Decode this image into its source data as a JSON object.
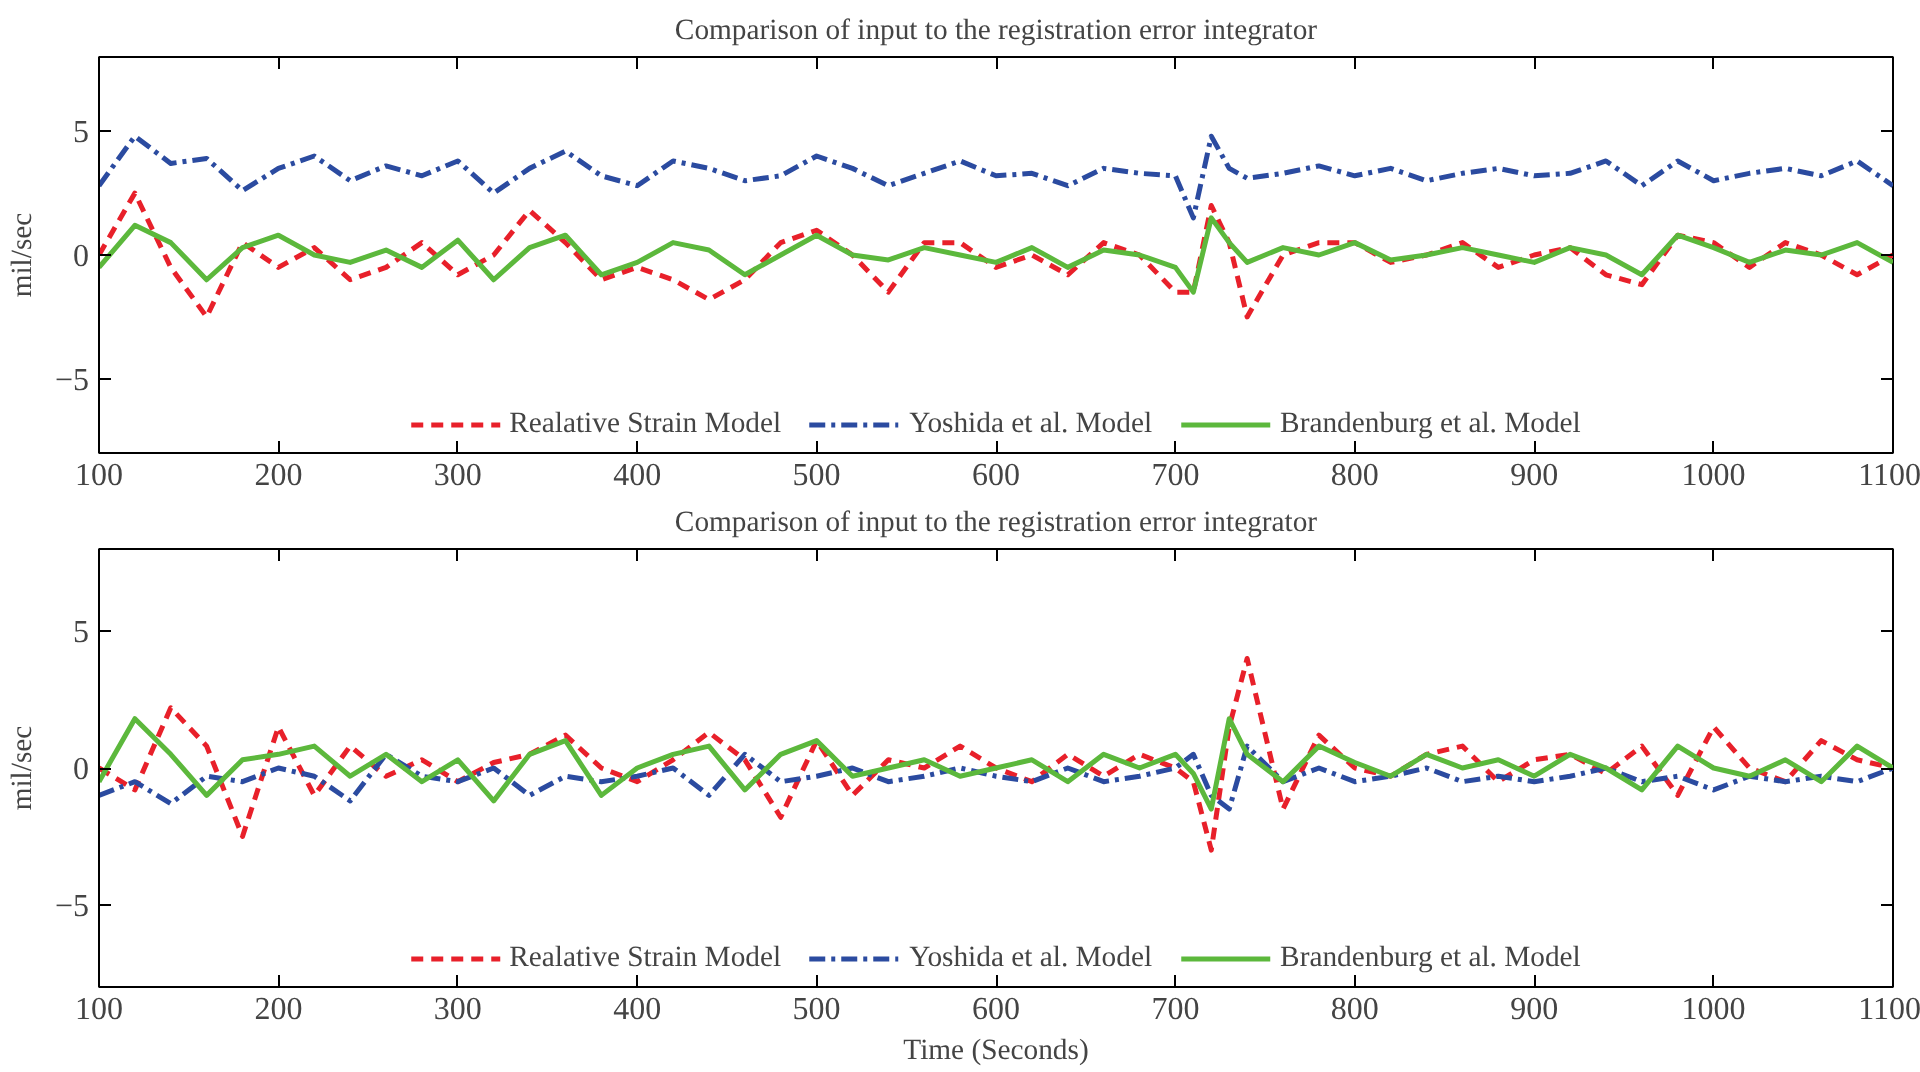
{
  "chart_data": [
    {
      "type": "line",
      "title": "Comparison of input to the registration error integrator",
      "ylabel": "mil/sec",
      "xlim": [
        100,
        1100
      ],
      "ylim": [
        -8,
        8
      ],
      "xticks": [
        100,
        200,
        300,
        400,
        500,
        600,
        700,
        800,
        900,
        1000,
        1100
      ],
      "yticks": [
        -5,
        0,
        5
      ],
      "grid": false,
      "legend": "bottom",
      "marker": "none",
      "x": [
        100,
        120,
        140,
        160,
        180,
        200,
        220,
        240,
        260,
        280,
        300,
        320,
        340,
        360,
        380,
        400,
        420,
        440,
        460,
        480,
        500,
        520,
        540,
        560,
        580,
        600,
        620,
        640,
        660,
        680,
        700,
        710,
        720,
        730,
        740,
        760,
        780,
        800,
        820,
        840,
        860,
        880,
        900,
        920,
        940,
        960,
        980,
        1000,
        1020,
        1040,
        1060,
        1080,
        1100
      ],
      "series": [
        {
          "name": "Realative Strain Model",
          "color": "#e8202a",
          "line_style": "dashed",
          "values": [
            0,
            2.5,
            -0.5,
            -2.5,
            0.5,
            -0.5,
            0.3,
            -1,
            -0.5,
            0.5,
            -0.8,
            0,
            1.8,
            0.5,
            -1,
            -0.5,
            -1,
            -1.8,
            -1,
            0.5,
            1,
            0,
            -1.5,
            0.5,
            0.5,
            -0.5,
            0,
            -0.8,
            0.5,
            0,
            -1.5,
            -1.5,
            2,
            0.5,
            -2.5,
            0,
            0.5,
            0.5,
            -0.3,
            0,
            0.5,
            -0.5,
            0,
            0.3,
            -0.8,
            -1.2,
            0.8,
            0.5,
            -0.5,
            0.5,
            0,
            -0.8,
            0
          ]
        },
        {
          "name": "Yoshida et al. Model",
          "color": "#2b4ba0",
          "line_style": "dashdot",
          "values": [
            2.8,
            4.8,
            3.7,
            3.9,
            2.6,
            3.5,
            4,
            3,
            3.6,
            3.2,
            3.8,
            2.5,
            3.5,
            4.2,
            3.2,
            2.8,
            3.8,
            3.5,
            3,
            3.2,
            4,
            3.5,
            2.8,
            3.3,
            3.8,
            3.2,
            3.3,
            2.8,
            3.5,
            3.3,
            3.2,
            1.5,
            4.8,
            3.5,
            3.1,
            3.3,
            3.6,
            3.2,
            3.5,
            3,
            3.3,
            3.5,
            3.2,
            3.3,
            3.8,
            2.8,
            3.8,
            3,
            3.3,
            3.5,
            3.2,
            3.8,
            2.8
          ]
        },
        {
          "name": "Brandenburg et al. Model",
          "color": "#5cb83c",
          "line_style": "solid",
          "values": [
            -0.5,
            1.2,
            0.5,
            -1,
            0.3,
            0.8,
            0,
            -0.3,
            0.2,
            -0.5,
            0.6,
            -1,
            0.3,
            0.8,
            -0.8,
            -0.3,
            0.5,
            0.2,
            -0.8,
            0,
            0.8,
            0,
            -0.2,
            0.3,
            0,
            -0.3,
            0.3,
            -0.5,
            0.2,
            0,
            -0.5,
            -1.5,
            1.5,
            0.5,
            -0.3,
            0.3,
            0,
            0.5,
            -0.2,
            0,
            0.3,
            0,
            -0.3,
            0.3,
            0,
            -0.8,
            0.8,
            0.3,
            -0.3,
            0.2,
            0,
            0.5,
            -0.3
          ]
        }
      ]
    },
    {
      "type": "line",
      "title": "Comparison of input to the registration error integrator",
      "xlabel": "Time (Seconds)",
      "ylabel": "mil/sec",
      "xlim": [
        100,
        1100
      ],
      "ylim": [
        -8,
        8
      ],
      "xticks": [
        100,
        200,
        300,
        400,
        500,
        600,
        700,
        800,
        900,
        1000,
        1100
      ],
      "yticks": [
        -5,
        0,
        5
      ],
      "grid": false,
      "legend": "bottom",
      "marker": "none",
      "x": [
        100,
        120,
        140,
        160,
        180,
        200,
        220,
        240,
        260,
        280,
        300,
        320,
        340,
        360,
        380,
        400,
        420,
        440,
        460,
        480,
        500,
        520,
        540,
        560,
        580,
        600,
        620,
        640,
        660,
        680,
        700,
        710,
        720,
        730,
        740,
        760,
        780,
        800,
        820,
        840,
        860,
        880,
        900,
        920,
        940,
        960,
        980,
        1000,
        1020,
        1040,
        1060,
        1080,
        1100
      ],
      "series": [
        {
          "name": "Realative Strain Model",
          "color": "#e8202a",
          "line_style": "dashed",
          "values": [
            0,
            -0.8,
            2.2,
            0.8,
            -2.5,
            1.5,
            -1,
            0.8,
            -0.3,
            0.3,
            -0.5,
            0.2,
            0.5,
            1.2,
            0,
            -0.5,
            0.3,
            1.3,
            0.3,
            -1.8,
            1,
            -1,
            0.3,
            0,
            0.8,
            0,
            -0.5,
            0.5,
            -0.3,
            0.5,
            0,
            -0.5,
            -3,
            1.5,
            4,
            -1.5,
            1.2,
            0,
            -0.3,
            0.5,
            0.8,
            -0.5,
            0.3,
            0.5,
            -0.2,
            0.8,
            -1,
            1.5,
            0,
            -0.5,
            1,
            0.3,
            0
          ]
        },
        {
          "name": "Yoshida et al. Model",
          "color": "#2b4ba0",
          "line_style": "dashdot",
          "values": [
            -1,
            -0.5,
            -1.3,
            -0.3,
            -0.5,
            0,
            -0.3,
            -1.2,
            0.5,
            -0.3,
            -0.5,
            0,
            -1,
            -0.3,
            -0.5,
            -0.3,
            0,
            -1,
            0.5,
            -0.5,
            -0.3,
            0,
            -0.5,
            -0.3,
            0,
            -0.3,
            -0.5,
            0,
            -0.5,
            -0.3,
            0,
            0.5,
            -1,
            -1.5,
            0.8,
            -0.5,
            0,
            -0.5,
            -0.3,
            0,
            -0.5,
            -0.3,
            -0.5,
            -0.3,
            0,
            -0.5,
            -0.3,
            -0.8,
            -0.3,
            -0.5,
            -0.3,
            -0.5,
            0
          ]
        },
        {
          "name": "Brandenburg et al. Model",
          "color": "#5cb83c",
          "line_style": "solid",
          "values": [
            -0.5,
            1.8,
            0.5,
            -1,
            0.3,
            0.5,
            0.8,
            -0.3,
            0.5,
            -0.5,
            0.3,
            -1.2,
            0.5,
            1,
            -1,
            0,
            0.5,
            0.8,
            -0.8,
            0.5,
            1,
            -0.3,
            0,
            0.3,
            -0.3,
            0,
            0.3,
            -0.5,
            0.5,
            0,
            0.5,
            -0.2,
            -1.5,
            1.8,
            0.5,
            -0.5,
            0.8,
            0.2,
            -0.3,
            0.5,
            0,
            0.3,
            -0.3,
            0.5,
            0,
            -0.8,
            0.8,
            0,
            -0.3,
            0.3,
            -0.5,
            0.8,
            0
          ]
        }
      ]
    }
  ]
}
